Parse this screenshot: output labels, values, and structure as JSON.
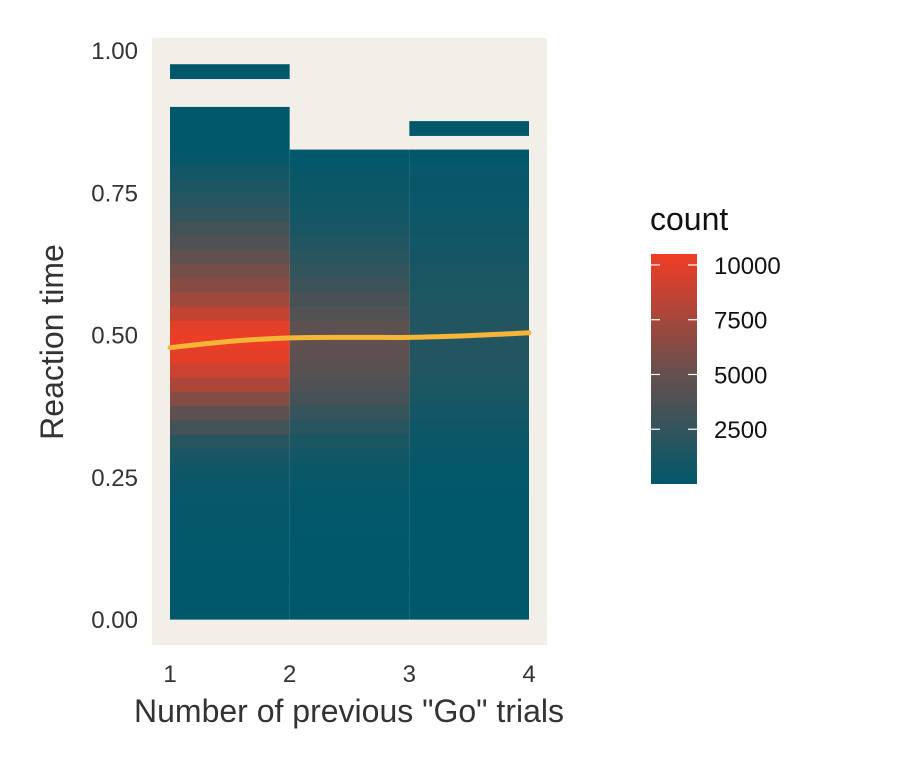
{
  "chart_data": {
    "type": "heatmap",
    "xlabel": "Number of previous \"Go\" trials",
    "ylabel": "Reaction time",
    "xlim": [
      1,
      4
    ],
    "ylim": [
      0,
      1
    ],
    "x_ticks": [
      "1",
      "2",
      "3",
      "4"
    ],
    "y_ticks": [
      "0.00",
      "0.25",
      "0.50",
      "0.75",
      "1.00"
    ],
    "bin_width_y": 0.025,
    "columns": [
      {
        "x_range": [
          1,
          2
        ],
        "bins": [
          {
            "y": [
              0.0,
              0.025
            ],
            "count": 50
          },
          {
            "y": [
              0.025,
              0.05
            ],
            "count": 50
          },
          {
            "y": [
              0.05,
              0.075
            ],
            "count": 60
          },
          {
            "y": [
              0.075,
              0.1
            ],
            "count": 70
          },
          {
            "y": [
              0.1,
              0.125
            ],
            "count": 80
          },
          {
            "y": [
              0.125,
              0.15
            ],
            "count": 100
          },
          {
            "y": [
              0.15,
              0.175
            ],
            "count": 130
          },
          {
            "y": [
              0.175,
              0.2
            ],
            "count": 180
          },
          {
            "y": [
              0.2,
              0.225
            ],
            "count": 250
          },
          {
            "y": [
              0.225,
              0.25
            ],
            "count": 400
          },
          {
            "y": [
              0.25,
              0.275
            ],
            "count": 700
          },
          {
            "y": [
              0.275,
              0.3
            ],
            "count": 1200
          },
          {
            "y": [
              0.3,
              0.325
            ],
            "count": 2000
          },
          {
            "y": [
              0.325,
              0.35
            ],
            "count": 3200
          },
          {
            "y": [
              0.35,
              0.375
            ],
            "count": 4600
          },
          {
            "y": [
              0.375,
              0.4
            ],
            "count": 6200
          },
          {
            "y": [
              0.4,
              0.425
            ],
            "count": 7800
          },
          {
            "y": [
              0.425,
              0.45
            ],
            "count": 9000
          },
          {
            "y": [
              0.45,
              0.475
            ],
            "count": 9900
          },
          {
            "y": [
              0.475,
              0.5
            ],
            "count": 10400
          },
          {
            "y": [
              0.5,
              0.525
            ],
            "count": 10000
          },
          {
            "y": [
              0.525,
              0.55
            ],
            "count": 8700
          },
          {
            "y": [
              0.55,
              0.575
            ],
            "count": 7300
          },
          {
            "y": [
              0.575,
              0.6
            ],
            "count": 6400
          },
          {
            "y": [
              0.6,
              0.625
            ],
            "count": 5600
          },
          {
            "y": [
              0.625,
              0.65
            ],
            "count": 4700
          },
          {
            "y": [
              0.65,
              0.675
            ],
            "count": 3900
          },
          {
            "y": [
              0.675,
              0.7
            ],
            "count": 3200
          },
          {
            "y": [
              0.7,
              0.725
            ],
            "count": 2500
          },
          {
            "y": [
              0.725,
              0.75
            ],
            "count": 1900
          },
          {
            "y": [
              0.75,
              0.775
            ],
            "count": 1400
          },
          {
            "y": [
              0.775,
              0.8
            ],
            "count": 900
          },
          {
            "y": [
              0.8,
              0.825
            ],
            "count": 150
          },
          {
            "y": [
              0.825,
              0.85
            ],
            "count": 60
          },
          {
            "y": [
              0.85,
              0.875
            ],
            "count": 40
          },
          {
            "y": [
              0.875,
              0.9
            ],
            "count": 30
          },
          {
            "y": [
              0.95,
              0.975
            ],
            "count": 5
          }
        ]
      },
      {
        "x_range": [
          2,
          3
        ],
        "bins": [
          {
            "y": [
              0.0,
              0.025
            ],
            "count": 20
          },
          {
            "y": [
              0.025,
              0.05
            ],
            "count": 20
          },
          {
            "y": [
              0.05,
              0.075
            ],
            "count": 30
          },
          {
            "y": [
              0.075,
              0.1
            ],
            "count": 40
          },
          {
            "y": [
              0.1,
              0.125
            ],
            "count": 50
          },
          {
            "y": [
              0.125,
              0.15
            ],
            "count": 60
          },
          {
            "y": [
              0.15,
              0.175
            ],
            "count": 80
          },
          {
            "y": [
              0.175,
              0.2
            ],
            "count": 100
          },
          {
            "y": [
              0.2,
              0.225
            ],
            "count": 150
          },
          {
            "y": [
              0.225,
              0.25
            ],
            "count": 250
          },
          {
            "y": [
              0.25,
              0.275
            ],
            "count": 450
          },
          {
            "y": [
              0.275,
              0.3
            ],
            "count": 800
          },
          {
            "y": [
              0.3,
              0.325
            ],
            "count": 1300
          },
          {
            "y": [
              0.325,
              0.35
            ],
            "count": 1900
          },
          {
            "y": [
              0.35,
              0.375
            ],
            "count": 2600
          },
          {
            "y": [
              0.375,
              0.4
            ],
            "count": 3300
          },
          {
            "y": [
              0.4,
              0.425
            ],
            "count": 3900
          },
          {
            "y": [
              0.425,
              0.45
            ],
            "count": 4300
          },
          {
            "y": [
              0.45,
              0.475
            ],
            "count": 4600
          },
          {
            "y": [
              0.475,
              0.5
            ],
            "count": 4700
          },
          {
            "y": [
              0.5,
              0.525
            ],
            "count": 4500
          },
          {
            "y": [
              0.525,
              0.55
            ],
            "count": 4000
          },
          {
            "y": [
              0.55,
              0.575
            ],
            "count": 3500
          },
          {
            "y": [
              0.575,
              0.6
            ],
            "count": 3000
          },
          {
            "y": [
              0.6,
              0.625
            ],
            "count": 2500
          },
          {
            "y": [
              0.625,
              0.65
            ],
            "count": 2000
          },
          {
            "y": [
              0.65,
              0.675
            ],
            "count": 1600
          },
          {
            "y": [
              0.675,
              0.7
            ],
            "count": 1200
          },
          {
            "y": [
              0.7,
              0.725
            ],
            "count": 900
          },
          {
            "y": [
              0.725,
              0.75
            ],
            "count": 650
          },
          {
            "y": [
              0.75,
              0.775
            ],
            "count": 450
          },
          {
            "y": [
              0.775,
              0.8
            ],
            "count": 300
          },
          {
            "y": [
              0.8,
              0.825
            ],
            "count": 80
          }
        ]
      },
      {
        "x_range": [
          3,
          4
        ],
        "bins": [
          {
            "y": [
              0.0,
              0.025
            ],
            "count": 10
          },
          {
            "y": [
              0.025,
              0.05
            ],
            "count": 10
          },
          {
            "y": [
              0.05,
              0.075
            ],
            "count": 10
          },
          {
            "y": [
              0.075,
              0.1
            ],
            "count": 15
          },
          {
            "y": [
              0.1,
              0.125
            ],
            "count": 20
          },
          {
            "y": [
              0.125,
              0.15
            ],
            "count": 25
          },
          {
            "y": [
              0.15,
              0.175
            ],
            "count": 30
          },
          {
            "y": [
              0.175,
              0.2
            ],
            "count": 40
          },
          {
            "y": [
              0.2,
              0.225
            ],
            "count": 60
          },
          {
            "y": [
              0.225,
              0.25
            ],
            "count": 100
          },
          {
            "y": [
              0.25,
              0.275
            ],
            "count": 180
          },
          {
            "y": [
              0.275,
              0.3
            ],
            "count": 300
          },
          {
            "y": [
              0.3,
              0.325
            ],
            "count": 480
          },
          {
            "y": [
              0.325,
              0.35
            ],
            "count": 700
          },
          {
            "y": [
              0.35,
              0.375
            ],
            "count": 950
          },
          {
            "y": [
              0.375,
              0.4
            ],
            "count": 1200
          },
          {
            "y": [
              0.4,
              0.425
            ],
            "count": 1400
          },
          {
            "y": [
              0.425,
              0.45
            ],
            "count": 1550
          },
          {
            "y": [
              0.45,
              0.475
            ],
            "count": 1650
          },
          {
            "y": [
              0.475,
              0.5
            ],
            "count": 1700
          },
          {
            "y": [
              0.5,
              0.525
            ],
            "count": 1700
          },
          {
            "y": [
              0.525,
              0.55
            ],
            "count": 1600
          },
          {
            "y": [
              0.55,
              0.575
            ],
            "count": 1450
          },
          {
            "y": [
              0.575,
              0.6
            ],
            "count": 1300
          },
          {
            "y": [
              0.6,
              0.625
            ],
            "count": 1150
          },
          {
            "y": [
              0.625,
              0.65
            ],
            "count": 1000
          },
          {
            "y": [
              0.65,
              0.675
            ],
            "count": 850
          },
          {
            "y": [
              0.675,
              0.7
            ],
            "count": 700
          },
          {
            "y": [
              0.7,
              0.725
            ],
            "count": 550
          },
          {
            "y": [
              0.725,
              0.75
            ],
            "count": 420
          },
          {
            "y": [
              0.75,
              0.775
            ],
            "count": 320
          },
          {
            "y": [
              0.775,
              0.8
            ],
            "count": 230
          },
          {
            "y": [
              0.8,
              0.825
            ],
            "count": 60
          },
          {
            "y": [
              0.85,
              0.875
            ],
            "count": 5
          }
        ]
      }
    ],
    "smooth_line": {
      "color": "#f7b538",
      "points": [
        {
          "x": 1.0,
          "y": 0.477
        },
        {
          "x": 1.5,
          "y": 0.488
        },
        {
          "x": 2.0,
          "y": 0.494
        },
        {
          "x": 2.5,
          "y": 0.495
        },
        {
          "x": 3.0,
          "y": 0.495
        },
        {
          "x": 3.5,
          "y": 0.498
        },
        {
          "x": 4.0,
          "y": 0.503
        }
      ]
    },
    "colorbar": {
      "title": "count",
      "range": [
        0,
        10500
      ],
      "breaks": [
        2500,
        5000,
        7500,
        10000
      ],
      "labels": [
        "2500",
        "5000",
        "7500",
        "10000"
      ],
      "low_color": "#01586b",
      "mid_color": "#6b4f4c",
      "high_color": "#f13d25"
    },
    "panel_background": "#f2efe8",
    "grid": false,
    "legend_position": "right"
  }
}
